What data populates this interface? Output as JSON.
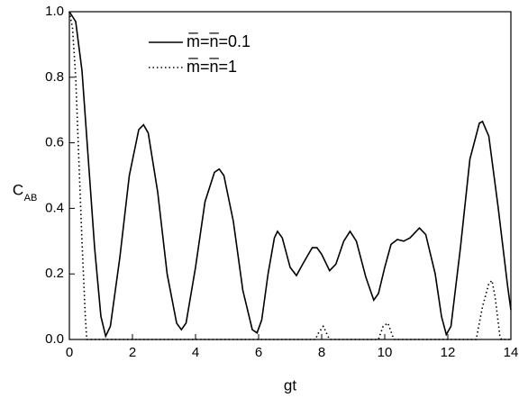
{
  "chart_data": {
    "type": "line",
    "x_label": "gt",
    "y_label": "C",
    "y_label_subscript": "AB",
    "xlim": [
      0,
      14
    ],
    "ylim": [
      0,
      1
    ],
    "xticks": [
      0,
      2,
      4,
      6,
      8,
      10,
      12,
      14
    ],
    "yticks": [
      {
        "value": 0,
        "label": "0.0"
      },
      0.2,
      0.4,
      0.6,
      0.8,
      {
        "value": 1,
        "label": "1.0"
      }
    ],
    "legend": "upper center",
    "series": [
      {
        "name": "m̅=n̅=0.1",
        "color": "#000000",
        "dash": "solid",
        "x": [
          0,
          0.2,
          0.4,
          0.6,
          0.8,
          1.0,
          1.15,
          1.3,
          1.6,
          1.9,
          2.2,
          2.35,
          2.5,
          2.8,
          3.1,
          3.4,
          3.55,
          3.7,
          4.0,
          4.3,
          4.6,
          4.75,
          4.9,
          5.2,
          5.5,
          5.8,
          5.95,
          6.1,
          6.3,
          6.5,
          6.6,
          6.75,
          7.0,
          7.2,
          7.4,
          7.7,
          7.85,
          8.0,
          8.25,
          8.45,
          8.7,
          8.9,
          9.1,
          9.4,
          9.65,
          9.8,
          10.0,
          10.2,
          10.4,
          10.6,
          10.8,
          11.1,
          11.3,
          11.6,
          11.8,
          11.95,
          12.1,
          12.4,
          12.7,
          13.0,
          13.1,
          13.3,
          13.6,
          13.9,
          14.0
        ],
        "values": [
          1.0,
          0.97,
          0.82,
          0.55,
          0.28,
          0.07,
          0.01,
          0.04,
          0.25,
          0.5,
          0.64,
          0.655,
          0.63,
          0.45,
          0.2,
          0.05,
          0.03,
          0.05,
          0.22,
          0.42,
          0.51,
          0.52,
          0.5,
          0.36,
          0.15,
          0.03,
          0.02,
          0.06,
          0.2,
          0.31,
          0.33,
          0.31,
          0.22,
          0.195,
          0.23,
          0.28,
          0.28,
          0.26,
          0.21,
          0.23,
          0.3,
          0.33,
          0.3,
          0.19,
          0.12,
          0.14,
          0.22,
          0.29,
          0.305,
          0.3,
          0.31,
          0.34,
          0.32,
          0.2,
          0.07,
          0.015,
          0.04,
          0.28,
          0.55,
          0.66,
          0.665,
          0.62,
          0.4,
          0.16,
          0.09
        ]
      },
      {
        "name": "m̅=n̅=1",
        "color": "#000000",
        "dash": "dotted",
        "x": [
          0,
          0.1,
          0.2,
          0.3,
          0.4,
          0.5,
          0.55,
          7.8,
          7.9,
          8.05,
          8.2,
          8.25,
          9.8,
          9.95,
          10.1,
          10.25,
          10.3,
          12.9,
          13.1,
          13.3,
          13.4,
          13.5,
          13.65,
          13.7,
          14.0
        ],
        "values": [
          1.0,
          0.95,
          0.8,
          0.55,
          0.3,
          0.08,
          0,
          0,
          0.02,
          0.04,
          0.01,
          0,
          0,
          0.04,
          0.05,
          0.01,
          0,
          0,
          0.1,
          0.17,
          0.18,
          0.13,
          0.01,
          0,
          0
        ]
      }
    ]
  }
}
